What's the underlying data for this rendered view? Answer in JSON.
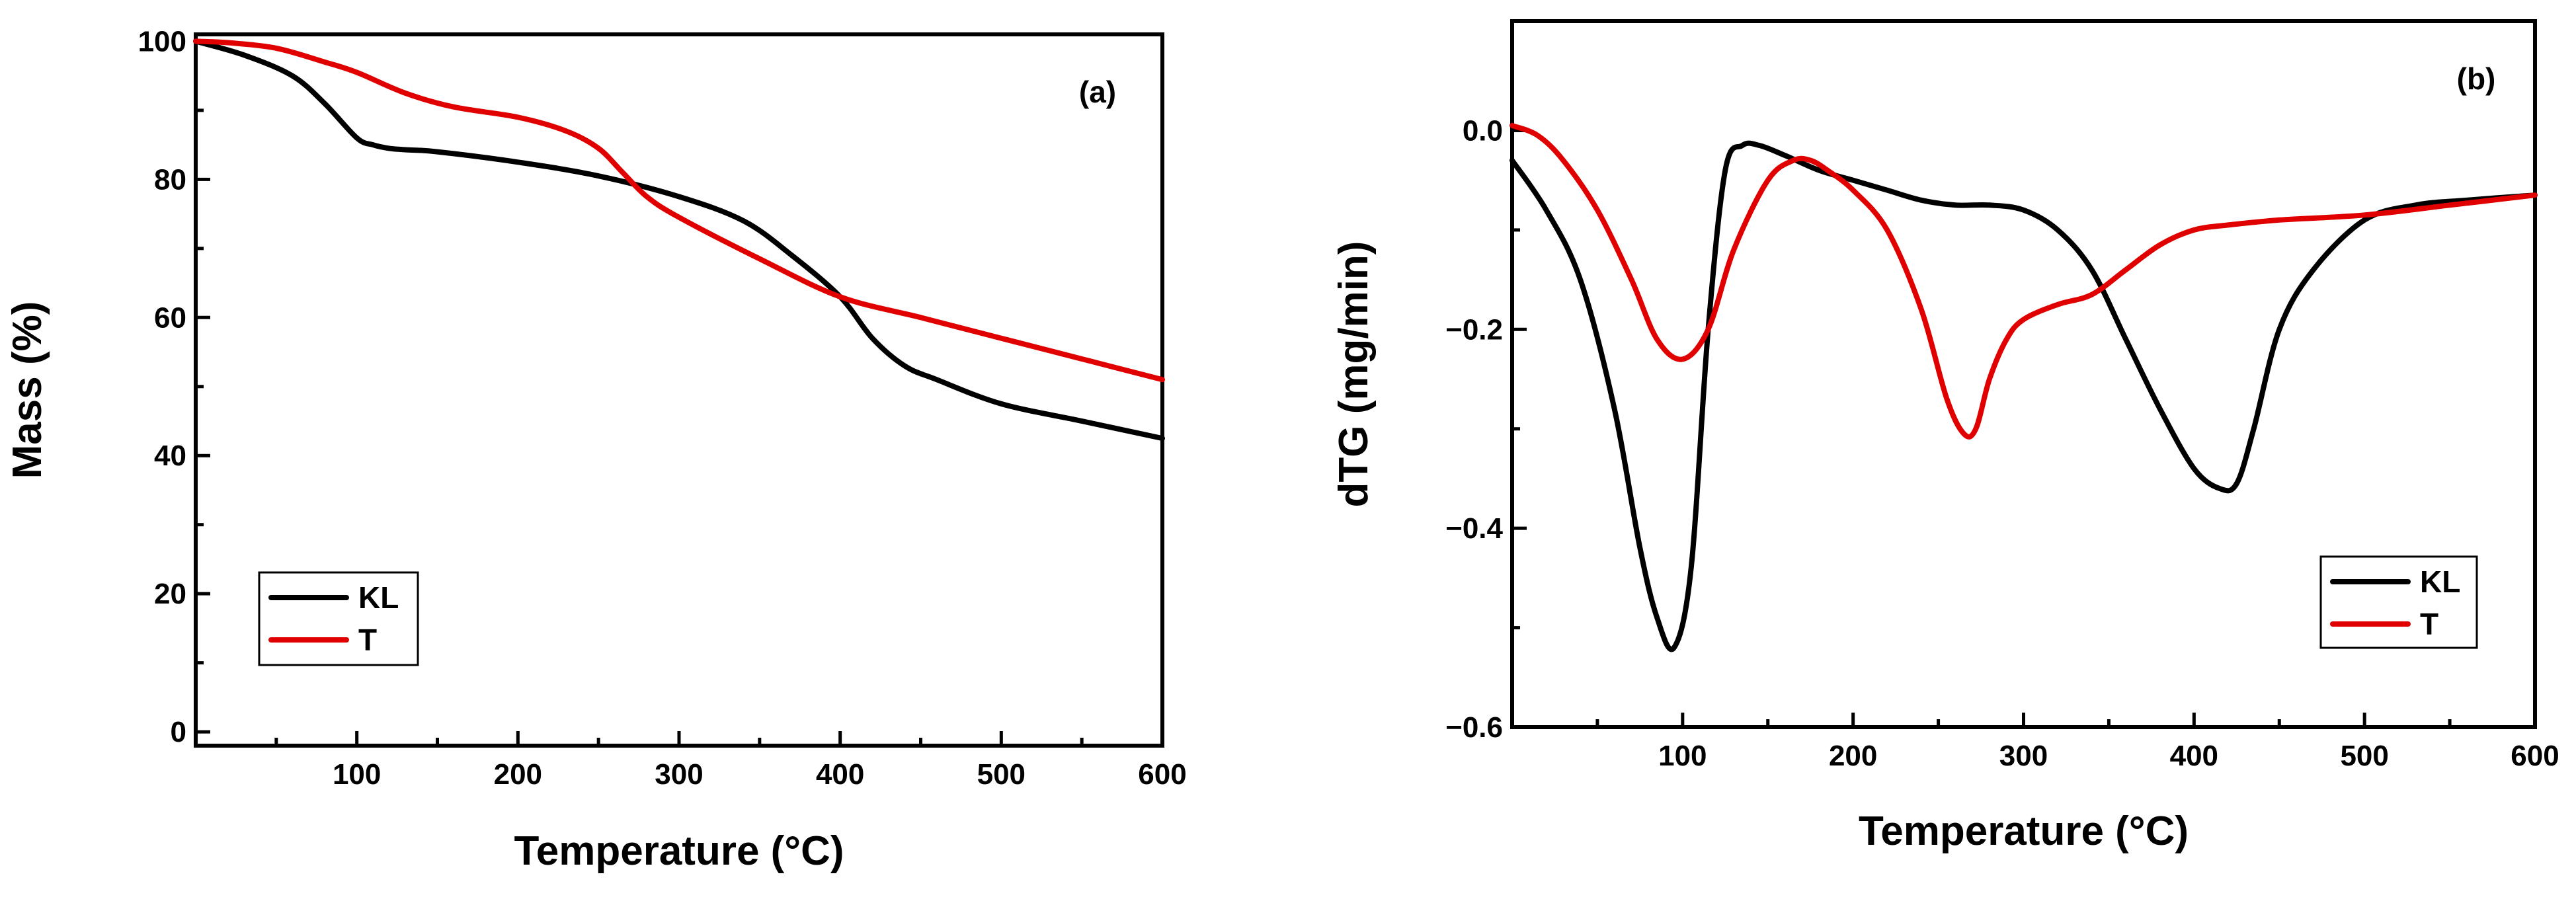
{
  "chart_data": [
    {
      "type": "line",
      "panel_label": "(a)",
      "xlabel": "Temperature (°C)",
      "ylabel": "Mass (%)",
      "xlim": [
        0,
        600
      ],
      "ylim": [
        -2,
        101
      ],
      "xticks": [
        100,
        200,
        300,
        400,
        500,
        600
      ],
      "xtick_labels": [
        "100",
        "200",
        "300",
        "400",
        "500",
        "600"
      ],
      "yticks": [
        0,
        20,
        40,
        60,
        80,
        100
      ],
      "ytick_labels": [
        "0",
        "20",
        "40",
        "60",
        "80",
        "100"
      ],
      "legend_position": "bottom-left",
      "series": [
        {
          "name": "KL",
          "color": "#000000",
          "x": [
            0,
            30,
            60,
            80,
            100,
            110,
            120,
            130,
            150,
            200,
            250,
            300,
            340,
            370,
            400,
            420,
            440,
            460,
            500,
            550,
            600
          ],
          "y": [
            100,
            98,
            95,
            91,
            86,
            85,
            84.5,
            84.3,
            84,
            82.5,
            80.5,
            77.5,
            74,
            69,
            63,
            57,
            53,
            51,
            47.5,
            45,
            42.5
          ]
        },
        {
          "name": "T",
          "color": "#e00000",
          "x": [
            0,
            20,
            50,
            80,
            100,
            130,
            160,
            200,
            230,
            250,
            265,
            280,
            300,
            350,
            400,
            450,
            500,
            550,
            600
          ],
          "y": [
            100,
            99.8,
            99,
            97,
            95.5,
            92.5,
            90.5,
            89,
            87,
            84.5,
            81,
            77.5,
            74.5,
            68.5,
            63,
            60,
            57,
            54,
            51
          ]
        }
      ]
    },
    {
      "type": "line",
      "panel_label": "(b)",
      "xlabel": "Temperature (°C)",
      "ylabel": "dTG (mg/min)",
      "xlim": [
        0,
        600
      ],
      "ylim": [
        -0.6,
        0.11
      ],
      "xticks": [
        100,
        200,
        300,
        400,
        500,
        600
      ],
      "xtick_labels": [
        "100",
        "200",
        "300",
        "400",
        "500",
        "600"
      ],
      "yticks": [
        0.0,
        -0.2,
        -0.4,
        -0.6
      ],
      "ytick_labels": [
        "0.0",
        "−0.2",
        "−0.4",
        "−0.6"
      ],
      "legend_position": "bottom-right",
      "series": [
        {
          "name": "KL",
          "color": "#000000",
          "x": [
            0,
            20,
            40,
            60,
            75,
            85,
            95,
            105,
            115,
            125,
            135,
            145,
            160,
            180,
            200,
            220,
            240,
            260,
            280,
            300,
            320,
            340,
            360,
            380,
            400,
            415,
            425,
            435,
            450,
            470,
            500,
            530,
            560,
            600
          ],
          "y": [
            -0.03,
            -0.08,
            -0.15,
            -0.28,
            -0.42,
            -0.49,
            -0.52,
            -0.44,
            -0.2,
            -0.04,
            -0.015,
            -0.015,
            -0.025,
            -0.04,
            -0.05,
            -0.06,
            -0.07,
            -0.075,
            -0.075,
            -0.08,
            -0.1,
            -0.14,
            -0.21,
            -0.28,
            -0.34,
            -0.36,
            -0.355,
            -0.3,
            -0.2,
            -0.14,
            -0.09,
            -0.075,
            -0.07,
            -0.065
          ]
        },
        {
          "name": "T",
          "color": "#e00000",
          "x": [
            0,
            15,
            30,
            50,
            70,
            85,
            100,
            115,
            130,
            150,
            165,
            175,
            185,
            200,
            220,
            240,
            255,
            265,
            272,
            280,
            290,
            300,
            320,
            340,
            360,
            380,
            400,
            420,
            450,
            500,
            550,
            600
          ],
          "y": [
            0.005,
            -0.005,
            -0.03,
            -0.08,
            -0.15,
            -0.21,
            -0.23,
            -0.2,
            -0.12,
            -0.05,
            -0.03,
            -0.03,
            -0.04,
            -0.06,
            -0.1,
            -0.18,
            -0.27,
            -0.305,
            -0.3,
            -0.25,
            -0.21,
            -0.19,
            -0.175,
            -0.165,
            -0.14,
            -0.115,
            -0.1,
            -0.095,
            -0.09,
            -0.085,
            -0.075,
            -0.065
          ]
        }
      ]
    }
  ]
}
